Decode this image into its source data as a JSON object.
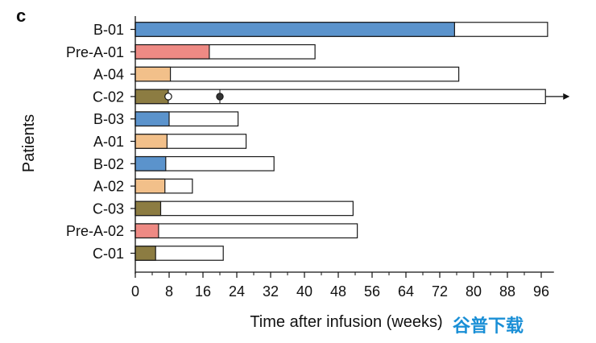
{
  "chart_data": {
    "type": "bar",
    "orientation": "horizontal",
    "panel_label": "c",
    "title": "",
    "xlabel": "Time after infusion (weeks)",
    "ylabel": "Patients",
    "xlim": [
      0,
      99
    ],
    "xticks": [
      0,
      8,
      16,
      24,
      32,
      40,
      48,
      56,
      64,
      72,
      80,
      88,
      96
    ],
    "grid": false,
    "colors": {
      "B": "#5b93cc",
      "Pre-A": "#ee8a84",
      "A": "#f2c08a",
      "C": "#8c7c42",
      "outline": "#1a1a1a",
      "open_marker": "#ffffff",
      "filled_marker": "#333333"
    },
    "patients": [
      {
        "id": "B-01",
        "group": "B",
        "colored_weeks": 75.5,
        "total_weeks": 97.5
      },
      {
        "id": "Pre-A-01",
        "group": "Pre-A",
        "colored_weeks": 17.5,
        "total_weeks": 42.5
      },
      {
        "id": "A-04",
        "group": "A",
        "colored_weeks": 8.3,
        "total_weeks": 76.5
      },
      {
        "id": "C-02",
        "group": "C",
        "colored_weeks": 7.8,
        "total_weeks": 97.0,
        "ongoing": true,
        "open_marker_week": 7.8,
        "filled_marker_week": 20.0
      },
      {
        "id": "B-03",
        "group": "B",
        "colored_weeks": 8.0,
        "total_weeks": 24.3
      },
      {
        "id": "A-01",
        "group": "A",
        "colored_weeks": 7.5,
        "total_weeks": 26.2
      },
      {
        "id": "B-02",
        "group": "B",
        "colored_weeks": 7.2,
        "total_weeks": 32.8
      },
      {
        "id": "A-02",
        "group": "A",
        "colored_weeks": 7.0,
        "total_weeks": 13.5
      },
      {
        "id": "C-03",
        "group": "C",
        "colored_weeks": 6.0,
        "total_weeks": 51.5
      },
      {
        "id": "Pre-A-02",
        "group": "Pre-A",
        "colored_weeks": 5.5,
        "total_weeks": 52.5
      },
      {
        "id": "C-01",
        "group": "C",
        "colored_weeks": 4.8,
        "total_weeks": 20.8
      }
    ]
  },
  "watermark": "谷普下载"
}
